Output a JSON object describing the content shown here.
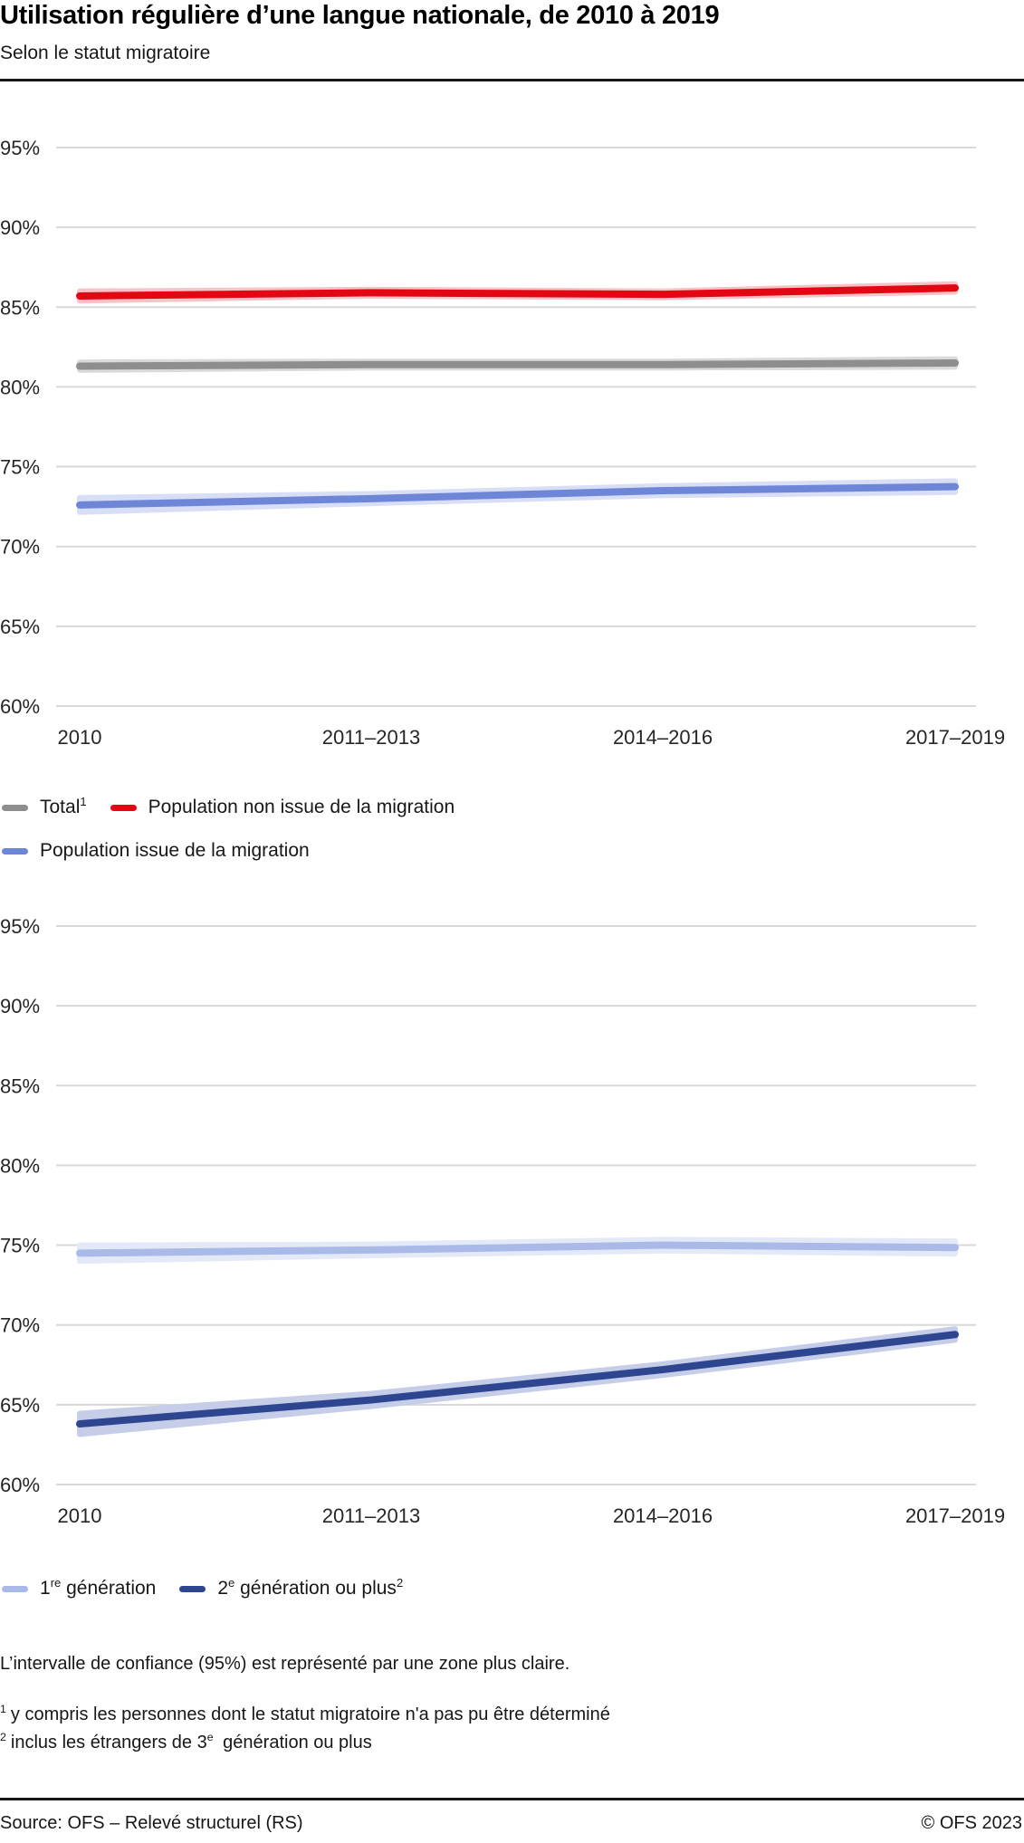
{
  "header": {
    "title": "Utilisation régulière d’une langue nationale, de 2010 à 2019",
    "subtitle": "Selon le statut migratoire"
  },
  "chart_data": [
    {
      "type": "line",
      "categories": [
        "2010",
        "2011–2013",
        "2014–2016",
        "2017–2019"
      ],
      "ylim": [
        60,
        97
      ],
      "y_ticks": [
        95,
        90,
        85,
        80,
        75,
        70,
        65,
        60
      ],
      "y_tick_suffix": "%",
      "grid": true,
      "legend_position": "below",
      "series": [
        {
          "name": "Total",
          "label_parts": [
            {
              "t": "Total"
            },
            {
              "t": "1",
              "sup": true
            }
          ],
          "color": "#8e8e8e",
          "band_color": "#dadada",
          "values": [
            81.3,
            81.4,
            81.4,
            81.5
          ],
          "ci_halfwidth": [
            0.25,
            0.2,
            0.2,
            0.25
          ]
        },
        {
          "name": "Population non issue de la migration",
          "label_parts": [
            {
              "t": "Population non issue de la migration"
            }
          ],
          "color": "#e30613",
          "band_color": "#f6c3c6",
          "values": [
            85.7,
            85.9,
            85.8,
            86.2
          ],
          "ci_halfwidth": [
            0.3,
            0.2,
            0.2,
            0.25
          ]
        },
        {
          "name": "Population issue de la migration",
          "label_parts": [
            {
              "t": "Population issue de la migration"
            }
          ],
          "color": "#6e86d8",
          "band_color": "#d8def5",
          "values": [
            72.6,
            73.0,
            73.5,
            73.75
          ],
          "ci_halfwidth": [
            0.45,
            0.3,
            0.3,
            0.35
          ]
        }
      ],
      "legend_rows": [
        [
          0,
          1
        ],
        [
          2
        ]
      ]
    },
    {
      "type": "line",
      "categories": [
        "2010",
        "2011–2013",
        "2014–2016",
        "2017–2019"
      ],
      "ylim": [
        60,
        97
      ],
      "y_ticks": [
        95,
        90,
        85,
        80,
        75,
        70,
        65,
        60
      ],
      "y_tick_suffix": "%",
      "grid": true,
      "legend_position": "below",
      "series": [
        {
          "name": "1re génération",
          "label_parts": [
            {
              "t": "1"
            },
            {
              "t": "re",
              "sup": true
            },
            {
              "t": " génération"
            }
          ],
          "color": "#a9bae8",
          "band_color": "#e4e9f8",
          "values": [
            74.5,
            74.7,
            75.0,
            74.85
          ],
          "ci_halfwidth": [
            0.5,
            0.35,
            0.35,
            0.4
          ]
        },
        {
          "name": "2e génération ou plus",
          "label_parts": [
            {
              "t": "2"
            },
            {
              "t": "e",
              "sup": true
            },
            {
              "t": " génération ou plus"
            },
            {
              "t": "2",
              "sup": true
            }
          ],
          "color": "#2e4590",
          "band_color": "#c6cde9",
          "values": [
            63.8,
            65.3,
            67.2,
            69.4
          ],
          "ci_halfwidth": [
            0.65,
            0.4,
            0.35,
            0.35
          ]
        }
      ],
      "legend_rows": [
        [
          0,
          1
        ]
      ]
    }
  ],
  "notes": {
    "confidence": "L’intervalle de confiance (95%) est représenté par une zone plus claire.",
    "footnotes": [
      {
        "marker": "1",
        "parts": [
          {
            "t": "y compris les personnes dont le statut migratoire n'a pas pu être déterminé"
          }
        ]
      },
      {
        "marker": "2",
        "parts": [
          {
            "t": "inclus les étrangers de 3"
          },
          {
            "t": "e",
            "sup": true
          },
          {
            "t": " génération ou plus"
          }
        ]
      }
    ]
  },
  "footer": {
    "source": "Source: OFS – Relevé structurel (RS)",
    "copyright": "© OFS 2023"
  },
  "style": {
    "grid_color": "#d8d8d8",
    "rule_color": "#161616",
    "text_color": "#171717"
  }
}
